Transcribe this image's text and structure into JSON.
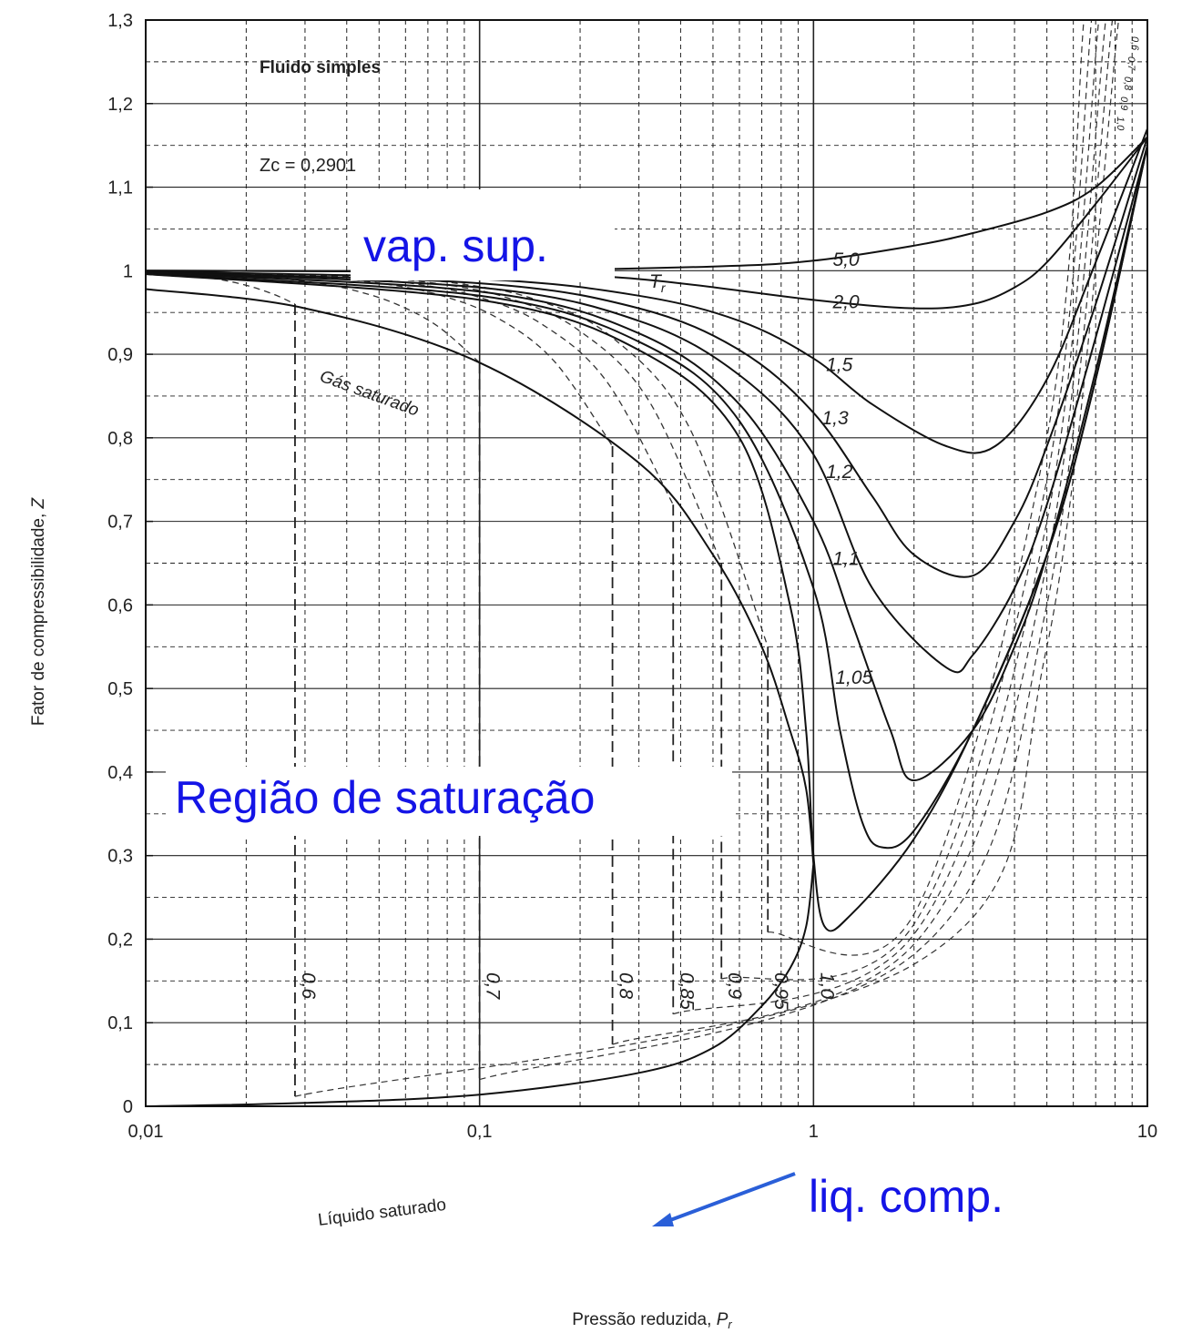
{
  "chart_data": {
    "type": "line",
    "xlabel_text": "Pressão reduzida,",
    "xlabel_sym": "P",
    "xlabel_sub": "r",
    "ylabel_text": "Fator de compressibilidade,",
    "ylabel_sym": "Z",
    "x_scale": "log",
    "xlim": [
      0.01,
      10
    ],
    "ylim": [
      0,
      1.3
    ],
    "grid": true,
    "x_ticks": [
      {
        "value": 0.01,
        "label": "0,01"
      },
      {
        "value": 0.1,
        "label": "0,1"
      },
      {
        "value": 1,
        "label": "1"
      },
      {
        "value": 10,
        "label": "10"
      }
    ],
    "y_ticks": [
      {
        "value": 0,
        "label": "0"
      },
      {
        "value": 0.1,
        "label": "0,1"
      },
      {
        "value": 0.2,
        "label": "0,2"
      },
      {
        "value": 0.3,
        "label": "0,3"
      },
      {
        "value": 0.4,
        "label": "0,4"
      },
      {
        "value": 0.5,
        "label": "0,5"
      },
      {
        "value": 0.6,
        "label": "0,6"
      },
      {
        "value": 0.7,
        "label": "0,7"
      },
      {
        "value": 0.8,
        "label": "0,8"
      },
      {
        "value": 0.9,
        "label": "0,9"
      },
      {
        "value": 1.0,
        "label": "1"
      },
      {
        "value": 1.1,
        "label": "1,1"
      },
      {
        "value": 1.2,
        "label": "1,2"
      },
      {
        "value": 1.3,
        "label": "1,3"
      }
    ],
    "annotations": {
      "fluid": "Fluido simples",
      "zc": "Zc = 0,2901",
      "tr_symbol": "T",
      "tr_sub": "r",
      "sat_gas": "Gás saturado",
      "sat_liquid": "Líquido saturado"
    },
    "supercritical_isotherms": [
      {
        "label": "5,0",
        "x": [
          0.01,
          0.1,
          0.5,
          1,
          2,
          3,
          5,
          7,
          10
        ],
        "y": [
          1.0,
          1.0,
          1.005,
          1.012,
          1.03,
          1.045,
          1.07,
          1.1,
          1.16
        ]
      },
      {
        "label": "2,0",
        "x": [
          0.01,
          0.1,
          0.3,
          1,
          2,
          3,
          4,
          5,
          7,
          10
        ],
        "y": [
          1.0,
          0.998,
          0.99,
          0.965,
          0.955,
          0.96,
          0.98,
          1.01,
          1.08,
          1.16
        ]
      },
      {
        "label": "1,5",
        "x": [
          0.01,
          0.1,
          0.3,
          0.6,
          1,
          1.5,
          2.5,
          3.5,
          5,
          7,
          10
        ],
        "y": [
          0.999,
          0.99,
          0.97,
          0.94,
          0.895,
          0.84,
          0.79,
          0.79,
          0.87,
          1.01,
          1.17
        ]
      },
      {
        "label": "1,3",
        "x": [
          0.01,
          0.1,
          0.3,
          0.6,
          1,
          1.5,
          2,
          3,
          4,
          5,
          7,
          10
        ],
        "y": [
          0.998,
          0.985,
          0.955,
          0.905,
          0.83,
          0.73,
          0.66,
          0.635,
          0.7,
          0.79,
          0.96,
          1.16
        ]
      },
      {
        "label": "1,2",
        "x": [
          0.01,
          0.1,
          0.3,
          0.6,
          1,
          1.5,
          2.5,
          3,
          4,
          5,
          7,
          10
        ],
        "y": [
          0.998,
          0.98,
          0.94,
          0.875,
          0.78,
          0.62,
          0.525,
          0.54,
          0.62,
          0.72,
          0.92,
          1.15
        ]
      },
      {
        "label": "1,1",
        "x": [
          0.01,
          0.1,
          0.3,
          0.6,
          1,
          1.3,
          1.7,
          2,
          3,
          4,
          5,
          7,
          10
        ],
        "y": [
          0.997,
          0.975,
          0.925,
          0.84,
          0.7,
          0.58,
          0.45,
          0.39,
          0.45,
          0.55,
          0.66,
          0.88,
          1.15
        ]
      },
      {
        "label": "1,05",
        "x": [
          0.01,
          0.1,
          0.3,
          0.6,
          1,
          1.2,
          1.4,
          1.6,
          2,
          3,
          5,
          7,
          10
        ],
        "y": [
          0.996,
          0.97,
          0.915,
          0.82,
          0.62,
          0.45,
          0.34,
          0.31,
          0.33,
          0.45,
          0.66,
          0.87,
          1.15
        ]
      }
    ],
    "critical_isotherm": {
      "label": "1,0",
      "x": [
        0.01,
        0.1,
        0.3,
        0.6,
        0.85,
        0.95,
        1,
        1.08,
        1.3,
        2,
        3,
        5,
        7,
        10
      ],
      "y": [
        0.996,
        0.965,
        0.905,
        0.8,
        0.6,
        0.45,
        0.3,
        0.215,
        0.23,
        0.32,
        0.45,
        0.66,
        0.87,
        1.15
      ]
    },
    "saturated_gas": {
      "x": [
        0.01,
        0.03,
        0.1,
        0.3,
        0.5,
        0.7,
        0.85,
        0.95,
        1.0
      ],
      "y": [
        0.978,
        0.955,
        0.89,
        0.77,
        0.66,
        0.55,
        0.45,
        0.38,
        0.29
      ]
    },
    "saturated_liquid": {
      "x": [
        0.01,
        0.03,
        0.1,
        0.3,
        0.5,
        0.7,
        0.85,
        0.95,
        1.0
      ],
      "y": [
        0.0,
        0.004,
        0.014,
        0.04,
        0.07,
        0.12,
        0.165,
        0.215,
        0.29
      ]
    },
    "subcritical_isotherms": [
      {
        "label": "0,6",
        "x_sat": 0.028,
        "z_sat": 0.96
      },
      {
        "label": "0,7",
        "x_sat": 0.1,
        "z_sat": 0.89
      },
      {
        "label": "0,8",
        "x_sat": 0.25,
        "z_sat": 0.79
      },
      {
        "label": "0,85",
        "x_sat": 0.38,
        "z_sat": 0.72
      },
      {
        "label": "0,9",
        "x_sat": 0.53,
        "z_sat": 0.65
      },
      {
        "label": "0,95",
        "x_sat": 0.73,
        "z_sat": 0.55
      }
    ],
    "dense_labels": [
      "0,6",
      "0,7",
      "0,8",
      "0,9",
      "1,0"
    ]
  },
  "overlays": {
    "vapor": "vap. sup.",
    "saturation": "Região de saturação",
    "liquid": "liq. comp."
  },
  "colors": {
    "overlay_text": "#1414e6",
    "arrow": "#2a5fd8",
    "curve": "#1a1a1a"
  }
}
